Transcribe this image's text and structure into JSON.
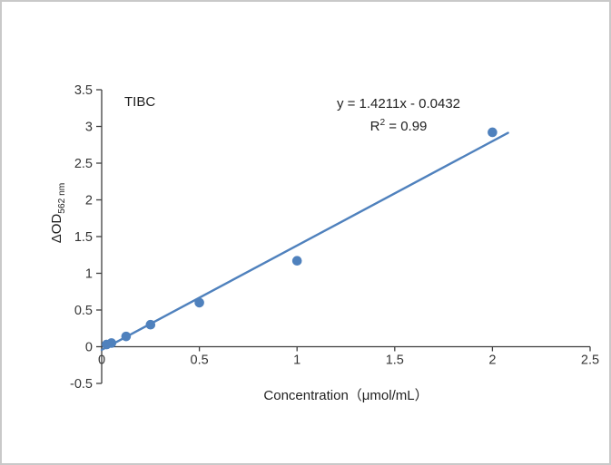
{
  "chart_data": {
    "type": "scatter",
    "title": "TIBC",
    "equation_line1": "y = 1.4211x - 0.0432",
    "r2_base": "R",
    "r2_sup": "2",
    "r2_tail": " = 0.99",
    "xlabel": "Concentration（μmol/mL）",
    "ylabel_main": "ΔOD",
    "ylabel_sub": "562 nm",
    "xlim": [
      0,
      2.5
    ],
    "ylim": [
      -0.5,
      3.5
    ],
    "x_ticks": [
      0,
      0.5,
      1,
      1.5,
      2,
      2.5
    ],
    "y_ticks": [
      -0.5,
      0,
      0.5,
      1,
      1.5,
      2,
      2.5,
      3,
      3.5
    ],
    "grid": false,
    "legend": "none",
    "marker_color": "#4f81bd",
    "line_color": "#4f81bd",
    "axis_color": "#3f3f3f",
    "points": [
      [
        0.025,
        0.03
      ],
      [
        0.05,
        0.05
      ],
      [
        0.125,
        0.14
      ],
      [
        0.25,
        0.3
      ],
      [
        0.5,
        0.6
      ],
      [
        1,
        1.17
      ],
      [
        2,
        2.92
      ]
    ],
    "trendline": {
      "slope": 1.4211,
      "intercept": -0.0432,
      "x_start": 0,
      "x_end": 2.08
    }
  }
}
